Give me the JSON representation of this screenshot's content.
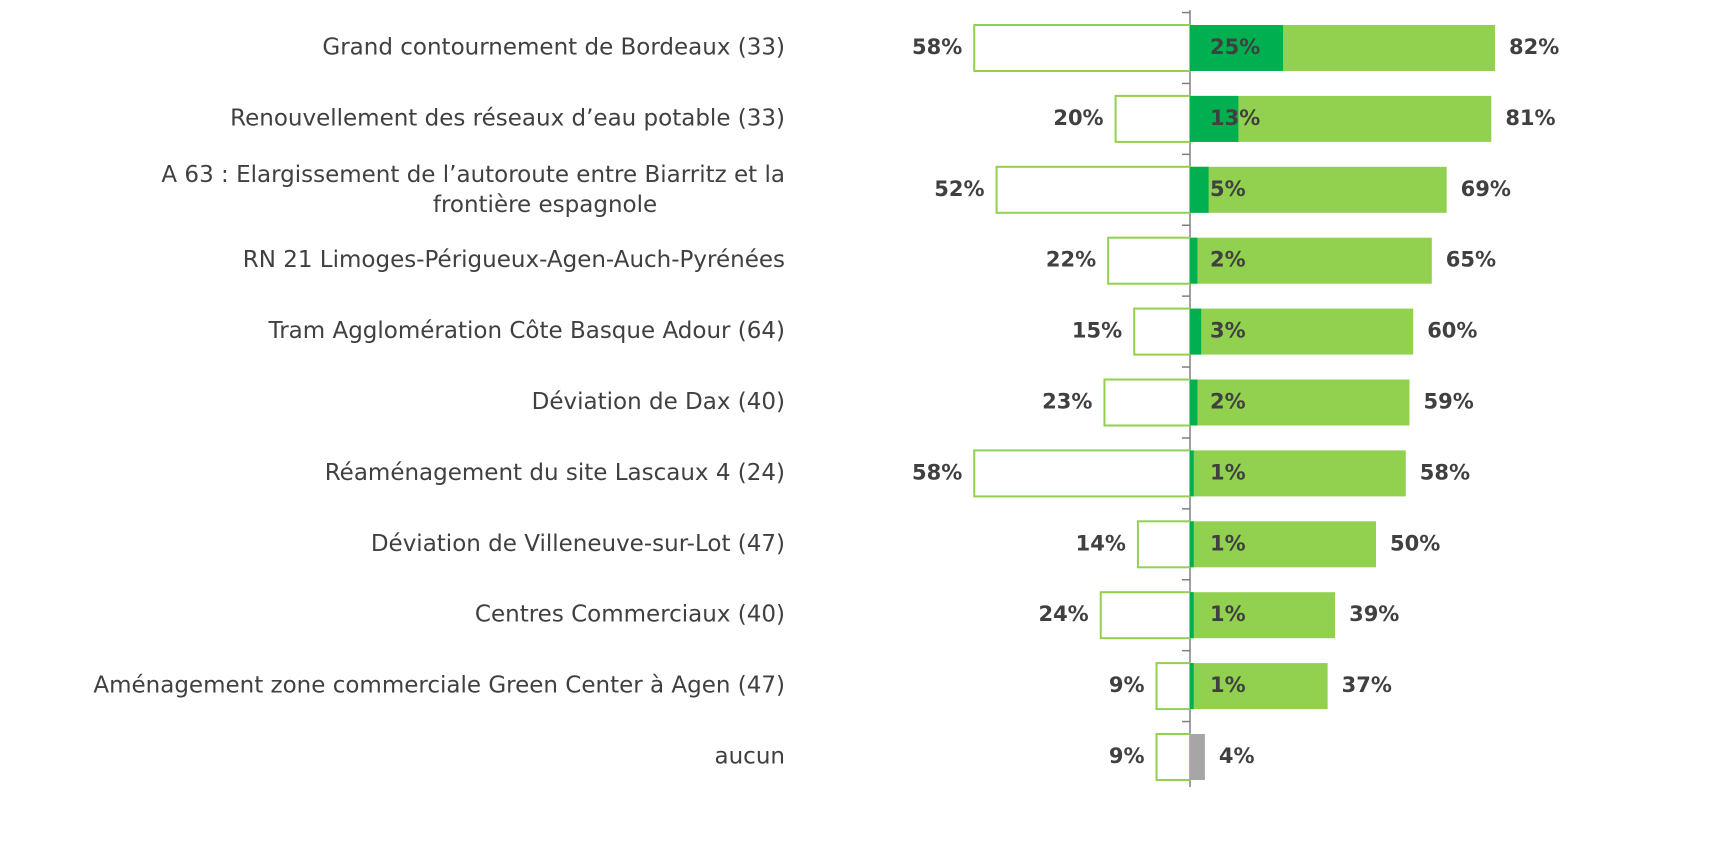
{
  "chart_data": {
    "type": "diverging-bar",
    "categories": [
      "Grand contournement de Bordeaux (33)",
      "Renouvellement des réseaux d’eau potable (33)",
      [
        "A 63 : Elargissement de l’autoroute entre Biarritz et la",
        "frontière espagnole"
      ],
      "RN 21 Limoges-Périgueux-Agen-Auch-Pyrénées",
      "Tram Agglomération Côte Basque Adour (64)",
      "Déviation de Dax (40)",
      "Réaménagement du site Lascaux 4 (24)",
      "Déviation de Villeneuve-sur-Lot (47)",
      "Centres Commerciaux  (40)",
      "Aménagement zone commerciale Green Center à Agen (47)",
      "aucun"
    ],
    "series": [
      {
        "side": "left",
        "color": "#92d050",
        "values": [
          58,
          20,
          52,
          22,
          15,
          23,
          58,
          14,
          24,
          9,
          9
        ],
        "value_labels": [
          "58%",
          "20%",
          "52%",
          "22%",
          "15%",
          "23%",
          "58%",
          "14%",
          "24%",
          "9%",
          "9%"
        ]
      },
      {
        "side": "right",
        "colors": [
          "#92d050",
          "#92d050",
          "#92d050",
          "#92d050",
          "#92d050",
          "#92d050",
          "#92d050",
          "#92d050",
          "#92d050",
          "#92d050",
          "#a6a6a6"
        ],
        "values": [
          82,
          81,
          69,
          65,
          60,
          59,
          58,
          50,
          39,
          37,
          4
        ],
        "value_labels": [
          "82%",
          "81%",
          "69%",
          "65%",
          "60%",
          "59%",
          "58%",
          "50%",
          "39%",
          "37%",
          "4%"
        ]
      },
      {
        "side": "overlay",
        "color": "#00b050",
        "values": [
          25,
          13,
          5,
          2,
          3,
          2,
          1,
          1,
          1,
          1,
          null
        ],
        "value_labels": [
          "25%",
          "13%",
          "5%",
          "2%",
          "3%",
          "2%",
          "1%",
          "1%",
          "1%",
          "1%",
          null
        ]
      }
    ]
  }
}
